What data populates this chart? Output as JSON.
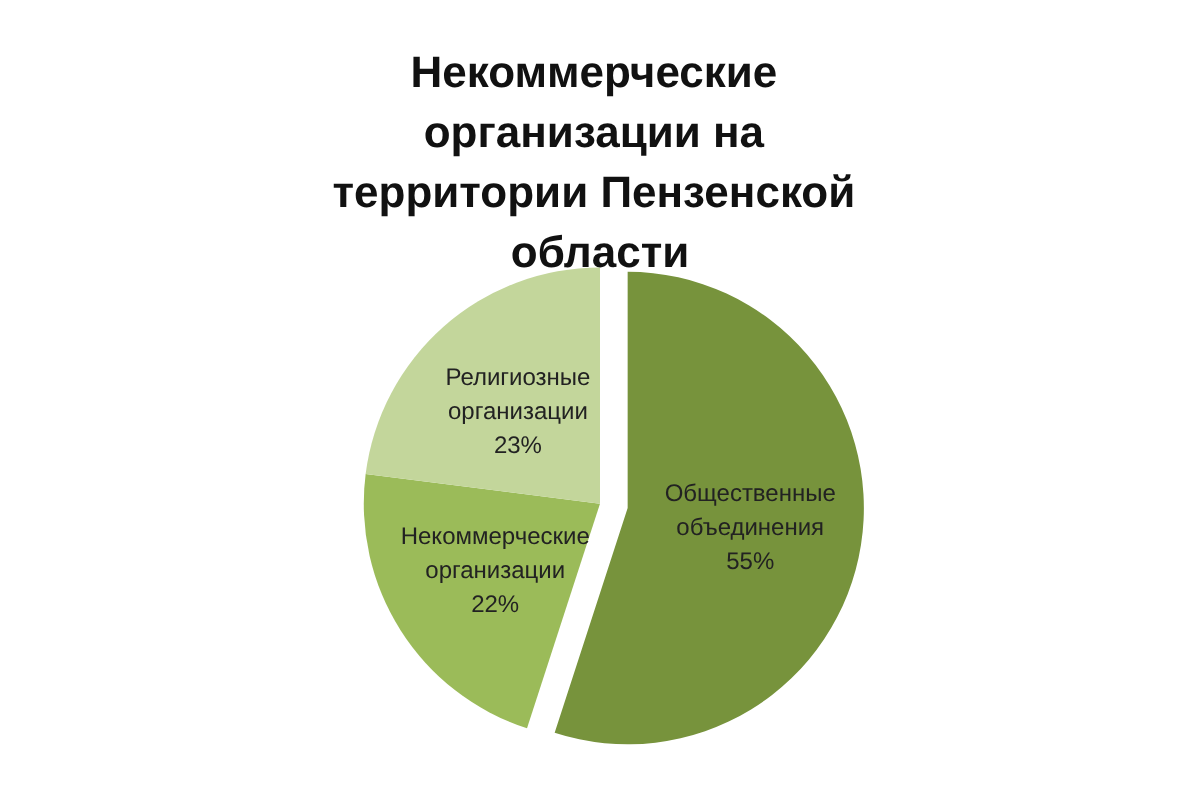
{
  "chart_data": {
    "type": "pie",
    "title": "Некоммерческие организации на территории Пензенской области",
    "categories": [
      "Общественные объединения",
      "Некоммерческие организации",
      "Религиозные организации"
    ],
    "values": [
      55,
      22,
      23
    ],
    "colors": [
      "#77933c",
      "#9bbb59",
      "#c3d69b"
    ],
    "value_labels": [
      "55%",
      "22%",
      "23%"
    ],
    "legend": false
  }
}
